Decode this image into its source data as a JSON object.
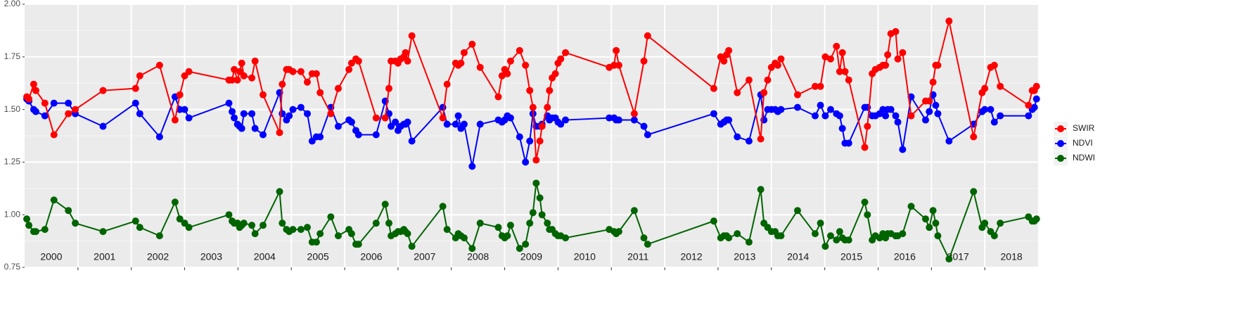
{
  "chart_data": {
    "type": "line",
    "x": [
      2000.04,
      2000.08,
      2000.17,
      2000.21,
      2000.38,
      2000.55,
      2000.82,
      2000.95,
      2001.47,
      2002.08,
      2002.16,
      2002.53,
      2002.82,
      2002.91,
      2003.0,
      2003.08,
      2003.83,
      2003.89,
      2003.93,
      2003.99,
      2004.03,
      2004.07,
      2004.11,
      2004.26,
      2004.32,
      2004.47,
      2004.78,
      2004.83,
      2004.91,
      2004.96,
      2005.03,
      2005.18,
      2005.3,
      2005.39,
      2005.47,
      2005.54,
      2005.74,
      2005.88,
      2006.08,
      2006.13,
      2006.21,
      2006.26,
      2006.59,
      2006.76,
      2006.83,
      2006.87,
      2006.95,
      2007.0,
      2007.05,
      2007.11,
      2007.14,
      2007.18,
      2007.26,
      2007.84,
      2007.92,
      2008.08,
      2008.13,
      2008.18,
      2008.24,
      2008.39,
      2008.54,
      2008.88,
      2008.95,
      2009.0,
      2009.05,
      2009.11,
      2009.28,
      2009.39,
      2009.47,
      2009.53,
      2009.59,
      2009.66,
      2009.7,
      2009.8,
      2009.84,
      2009.89,
      2009.95,
      2010.0,
      2010.05,
      2010.14,
      2010.96,
      2011.05,
      2011.09,
      2011.14,
      2011.43,
      2011.61,
      2011.68,
      2012.92,
      2013.05,
      2013.11,
      2013.16,
      2013.2,
      2013.36,
      2013.58,
      2013.8,
      2013.86,
      2013.93,
      2014.0,
      2014.07,
      2014.12,
      2014.18,
      2014.49,
      2014.82,
      2014.92,
      2015.01,
      2015.11,
      2015.22,
      2015.28,
      2015.33,
      2015.38,
      2015.45,
      2015.75,
      2015.8,
      2015.89,
      2015.95,
      2016.03,
      2016.09,
      2016.14,
      2016.18,
      2016.24,
      2016.33,
      2016.37,
      2016.46,
      2016.62,
      2016.89,
      2016.96,
      2017.03,
      2017.08,
      2017.12,
      2017.33,
      2017.79,
      2017.95,
      2018.0,
      2018.11,
      2018.18,
      2018.29,
      2018.82,
      2018.89,
      2018.93,
      2018.97
    ],
    "series": [
      {
        "name": "SWIR",
        "color": "#ff0000",
        "values": [
          1.56,
          1.55,
          1.62,
          1.59,
          1.53,
          1.38,
          1.48,
          1.5,
          1.59,
          1.6,
          1.66,
          1.71,
          1.45,
          1.57,
          1.66,
          1.68,
          1.64,
          1.64,
          1.69,
          1.64,
          1.68,
          1.72,
          1.66,
          1.65,
          1.73,
          1.57,
          1.39,
          1.62,
          1.69,
          1.69,
          1.68,
          1.68,
          1.63,
          1.67,
          1.67,
          1.58,
          1.48,
          1.6,
          1.69,
          1.72,
          1.74,
          1.73,
          1.46,
          1.46,
          1.6,
          1.73,
          1.73,
          1.72,
          1.74,
          1.75,
          1.77,
          1.73,
          1.85,
          1.46,
          1.62,
          1.72,
          1.71,
          1.72,
          1.77,
          1.81,
          1.7,
          1.56,
          1.66,
          1.69,
          1.67,
          1.73,
          1.78,
          1.71,
          1.59,
          1.51,
          1.26,
          1.35,
          1.42,
          1.51,
          1.59,
          1.65,
          1.67,
          1.72,
          1.74,
          1.77,
          1.7,
          1.71,
          1.78,
          1.71,
          1.48,
          1.73,
          1.85,
          1.6,
          1.75,
          1.73,
          1.76,
          1.78,
          1.58,
          1.64,
          1.36,
          1.58,
          1.64,
          1.7,
          1.72,
          1.71,
          1.74,
          1.57,
          1.61,
          1.61,
          1.75,
          1.74,
          1.8,
          1.68,
          1.77,
          1.68,
          1.64,
          1.32,
          1.42,
          1.67,
          1.69,
          1.7,
          1.71,
          1.71,
          1.76,
          1.86,
          1.87,
          1.74,
          1.77,
          1.47,
          1.54,
          1.54,
          1.63,
          1.71,
          1.71,
          1.92,
          1.37,
          1.58,
          1.6,
          1.7,
          1.71,
          1.61,
          1.52,
          1.59,
          1.59,
          1.61
        ]
      },
      {
        "name": "NDVI",
        "color": "#0000ff",
        "values": [
          1.55,
          1.54,
          1.5,
          1.49,
          1.47,
          1.53,
          1.53,
          1.48,
          1.42,
          1.53,
          1.48,
          1.37,
          1.56,
          1.5,
          1.5,
          1.46,
          1.53,
          1.49,
          1.46,
          1.43,
          1.42,
          1.41,
          1.48,
          1.48,
          1.41,
          1.38,
          1.58,
          1.48,
          1.45,
          1.47,
          1.5,
          1.51,
          1.48,
          1.35,
          1.37,
          1.37,
          1.51,
          1.42,
          1.45,
          1.44,
          1.4,
          1.38,
          1.38,
          1.54,
          1.48,
          1.42,
          1.44,
          1.4,
          1.42,
          1.43,
          1.43,
          1.44,
          1.35,
          1.51,
          1.43,
          1.43,
          1.47,
          1.41,
          1.43,
          1.23,
          1.43,
          1.45,
          1.44,
          1.45,
          1.47,
          1.46,
          1.37,
          1.25,
          1.35,
          1.48,
          1.42,
          1.42,
          1.43,
          1.47,
          1.45,
          1.46,
          1.46,
          1.44,
          1.43,
          1.45,
          1.46,
          1.46,
          1.45,
          1.45,
          1.45,
          1.42,
          1.38,
          1.48,
          1.43,
          1.44,
          1.45,
          1.45,
          1.37,
          1.35,
          1.57,
          1.45,
          1.5,
          1.5,
          1.5,
          1.49,
          1.5,
          1.51,
          1.47,
          1.52,
          1.47,
          1.5,
          1.48,
          1.47,
          1.41,
          1.34,
          1.34,
          1.51,
          1.51,
          1.47,
          1.47,
          1.48,
          1.5,
          1.47,
          1.5,
          1.5,
          1.47,
          1.44,
          1.31,
          1.56,
          1.45,
          1.49,
          1.57,
          1.52,
          1.48,
          1.35,
          1.43,
          1.49,
          1.5,
          1.5,
          1.44,
          1.47,
          1.47,
          1.5,
          1.51,
          1.55
        ]
      },
      {
        "name": "NDWI",
        "color": "#006400",
        "values": [
          0.98,
          0.95,
          0.92,
          0.92,
          0.93,
          1.07,
          1.02,
          0.96,
          0.92,
          0.97,
          0.94,
          0.9,
          1.06,
          0.98,
          0.96,
          0.94,
          1.0,
          0.97,
          0.96,
          0.96,
          0.94,
          0.95,
          0.96,
          0.95,
          0.91,
          0.95,
          1.11,
          0.96,
          0.93,
          0.92,
          0.93,
          0.93,
          0.94,
          0.87,
          0.87,
          0.91,
          0.99,
          0.9,
          0.93,
          0.91,
          0.86,
          0.86,
          0.96,
          1.05,
          0.96,
          0.9,
          0.91,
          0.92,
          0.92,
          0.93,
          0.92,
          0.91,
          0.85,
          1.04,
          0.93,
          0.89,
          0.91,
          0.9,
          0.89,
          0.84,
          0.96,
          0.94,
          0.9,
          0.89,
          0.9,
          0.95,
          0.84,
          0.86,
          0.96,
          1.01,
          1.15,
          1.08,
          1.0,
          0.96,
          0.93,
          0.93,
          0.91,
          0.9,
          0.9,
          0.89,
          0.93,
          0.92,
          0.91,
          0.92,
          1.02,
          0.89,
          0.86,
          0.97,
          0.89,
          0.9,
          0.9,
          0.89,
          0.91,
          0.87,
          1.12,
          0.96,
          0.94,
          0.92,
          0.92,
          0.9,
          0.9,
          1.02,
          0.91,
          0.96,
          0.85,
          0.9,
          0.88,
          0.92,
          0.89,
          0.88,
          0.88,
          1.06,
          1.0,
          0.88,
          0.9,
          0.89,
          0.91,
          0.89,
          0.91,
          0.91,
          0.9,
          0.9,
          0.91,
          1.04,
          0.98,
          0.94,
          1.02,
          0.96,
          0.9,
          0.79,
          1.11,
          0.94,
          0.96,
          0.92,
          0.9,
          0.96,
          0.99,
          0.97,
          0.97,
          0.98
        ]
      }
    ],
    "xlim": [
      2000,
      2019
    ],
    "xticks": [
      2001,
      2002,
      2003,
      2004,
      2005,
      2006,
      2007,
      2008,
      2009,
      2010,
      2011,
      2012,
      2013,
      2014,
      2015,
      2016,
      2017,
      2018
    ],
    "year_labels": [
      2000,
      2001,
      2002,
      2003,
      2004,
      2005,
      2006,
      2007,
      2008,
      2009,
      2010,
      2011,
      2012,
      2013,
      2014,
      2015,
      2016,
      2017,
      2018
    ],
    "ylim": [
      0.75,
      2.0
    ],
    "yticks": [
      0.75,
      {
        "value": 1.0,
        "label": "1.00"
      },
      1.25,
      {
        "value": 1.5,
        "label": "1.50"
      },
      1.75,
      {
        "value": 2.0,
        "label": "2.00"
      }
    ],
    "y_minor_grid": [
      0.875,
      1.125,
      1.375,
      1.625,
      1.875
    ],
    "grid": true,
    "legend": "right"
  }
}
